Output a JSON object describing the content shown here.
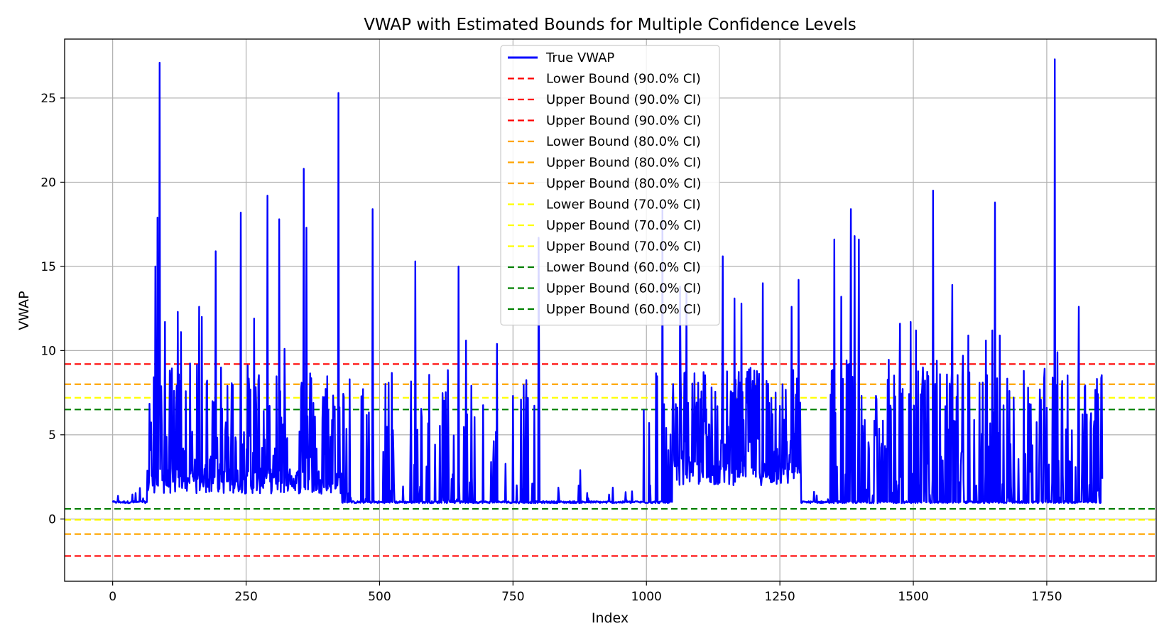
{
  "chart_data": {
    "type": "line",
    "title": "VWAP with Estimated Bounds for Multiple Confidence Levels",
    "xlabel": "Index",
    "ylabel": "VWAP",
    "xlim": [
      -90,
      1955
    ],
    "ylim": [
      -3.7,
      28.5
    ],
    "xticks": [
      0,
      250,
      500,
      750,
      1000,
      1250,
      1500,
      1750
    ],
    "yticks": [
      0,
      5,
      10,
      15,
      20,
      25
    ],
    "grid": true,
    "legend_position": "top-center",
    "series_line": {
      "name": "True VWAP",
      "color": "#0000ff",
      "n_points": 1855,
      "baseline": 1.0,
      "regimes": [
        {
          "start": 0,
          "end": 65,
          "lo": 0.9,
          "hi": 1.9,
          "spike_prob": 0.15
        },
        {
          "start": 65,
          "end": 430,
          "lo": 1.5,
          "hi": 9.3,
          "spike_prob": 0.45
        },
        {
          "start": 430,
          "end": 810,
          "lo": 0.9,
          "hi": 9.3,
          "spike_prob": 0.2
        },
        {
          "start": 810,
          "end": 990,
          "lo": 0.9,
          "hi": 2.0,
          "spike_prob": 0.05
        },
        {
          "start": 990,
          "end": 1050,
          "lo": 0.9,
          "hi": 9.8,
          "spike_prob": 0.12
        },
        {
          "start": 1050,
          "end": 1290,
          "lo": 2.0,
          "hi": 9.0,
          "spike_prob": 0.6
        },
        {
          "start": 1290,
          "end": 1345,
          "lo": 0.9,
          "hi": 1.9,
          "spike_prob": 0.1
        },
        {
          "start": 1345,
          "end": 1545,
          "lo": 0.9,
          "hi": 9.5,
          "spike_prob": 0.4
        },
        {
          "start": 1545,
          "end": 1735,
          "lo": 0.9,
          "hi": 9.0,
          "spike_prob": 0.3
        },
        {
          "start": 1735,
          "end": 1855,
          "lo": 0.9,
          "hi": 9.0,
          "spike_prob": 0.4
        }
      ],
      "peaks": [
        {
          "x": 88,
          "y": 27.1
        },
        {
          "x": 84,
          "y": 17.9
        },
        {
          "x": 80,
          "y": 15.0
        },
        {
          "x": 98,
          "y": 11.7
        },
        {
          "x": 122,
          "y": 12.3
        },
        {
          "x": 128,
          "y": 11.1
        },
        {
          "x": 162,
          "y": 12.6
        },
        {
          "x": 167,
          "y": 12.0
        },
        {
          "x": 193,
          "y": 15.9
        },
        {
          "x": 240,
          "y": 18.2
        },
        {
          "x": 265,
          "y": 11.9
        },
        {
          "x": 290,
          "y": 19.2
        },
        {
          "x": 312,
          "y": 17.8
        },
        {
          "x": 322,
          "y": 10.1
        },
        {
          "x": 358,
          "y": 20.8
        },
        {
          "x": 363,
          "y": 17.3
        },
        {
          "x": 423,
          "y": 25.3
        },
        {
          "x": 487,
          "y": 18.4
        },
        {
          "x": 567,
          "y": 15.3
        },
        {
          "x": 648,
          "y": 15.0
        },
        {
          "x": 662,
          "y": 10.6
        },
        {
          "x": 720,
          "y": 10.4
        },
        {
          "x": 798,
          "y": 16.7
        },
        {
          "x": 1030,
          "y": 18.6
        },
        {
          "x": 1063,
          "y": 13.8
        },
        {
          "x": 1075,
          "y": 13.5
        },
        {
          "x": 1143,
          "y": 15.6
        },
        {
          "x": 1165,
          "y": 13.1
        },
        {
          "x": 1178,
          "y": 12.8
        },
        {
          "x": 1218,
          "y": 14.0
        },
        {
          "x": 1272,
          "y": 12.6
        },
        {
          "x": 1285,
          "y": 14.2
        },
        {
          "x": 1352,
          "y": 16.6
        },
        {
          "x": 1365,
          "y": 13.2
        },
        {
          "x": 1383,
          "y": 18.4
        },
        {
          "x": 1390,
          "y": 16.8
        },
        {
          "x": 1398,
          "y": 16.6
        },
        {
          "x": 1475,
          "y": 11.6
        },
        {
          "x": 1495,
          "y": 11.7
        },
        {
          "x": 1505,
          "y": 11.2
        },
        {
          "x": 1537,
          "y": 19.5
        },
        {
          "x": 1573,
          "y": 13.9
        },
        {
          "x": 1593,
          "y": 9.7
        },
        {
          "x": 1603,
          "y": 10.9
        },
        {
          "x": 1636,
          "y": 10.6
        },
        {
          "x": 1648,
          "y": 11.2
        },
        {
          "x": 1653,
          "y": 18.8
        },
        {
          "x": 1662,
          "y": 10.9
        },
        {
          "x": 1765,
          "y": 27.3
        },
        {
          "x": 1770,
          "y": 9.9
        },
        {
          "x": 1810,
          "y": 12.6
        },
        {
          "x": 876,
          "y": 2.9
        }
      ]
    },
    "bounds": [
      {
        "name": "Lower Bound (90.0% CI)",
        "value": -2.2,
        "color": "#ff0000"
      },
      {
        "name": "Upper Bound (90.0% CI)",
        "value": 9.2,
        "color": "#ff0000"
      },
      {
        "name": "Upper Bound (90.0% CI)",
        "value": 9.2,
        "color": "#ff0000"
      },
      {
        "name": "Lower Bound (80.0% CI)",
        "value": -0.9,
        "color": "#ffa500"
      },
      {
        "name": "Upper Bound (80.0% CI)",
        "value": 8.0,
        "color": "#ffa500"
      },
      {
        "name": "Upper Bound (80.0% CI)",
        "value": 8.0,
        "color": "#ffa500"
      },
      {
        "name": "Lower Bound (70.0% CI)",
        "value": -0.05,
        "color": "#ffff00"
      },
      {
        "name": "Upper Bound (70.0% CI)",
        "value": 7.2,
        "color": "#ffff00"
      },
      {
        "name": "Upper Bound (70.0% CI)",
        "value": 7.2,
        "color": "#ffff00"
      },
      {
        "name": "Lower Bound (60.0% CI)",
        "value": 0.6,
        "color": "#008000"
      },
      {
        "name": "Upper Bound (60.0% CI)",
        "value": 6.5,
        "color": "#008000"
      },
      {
        "name": "Upper Bound (60.0% CI)",
        "value": 6.5,
        "color": "#008000"
      }
    ]
  }
}
